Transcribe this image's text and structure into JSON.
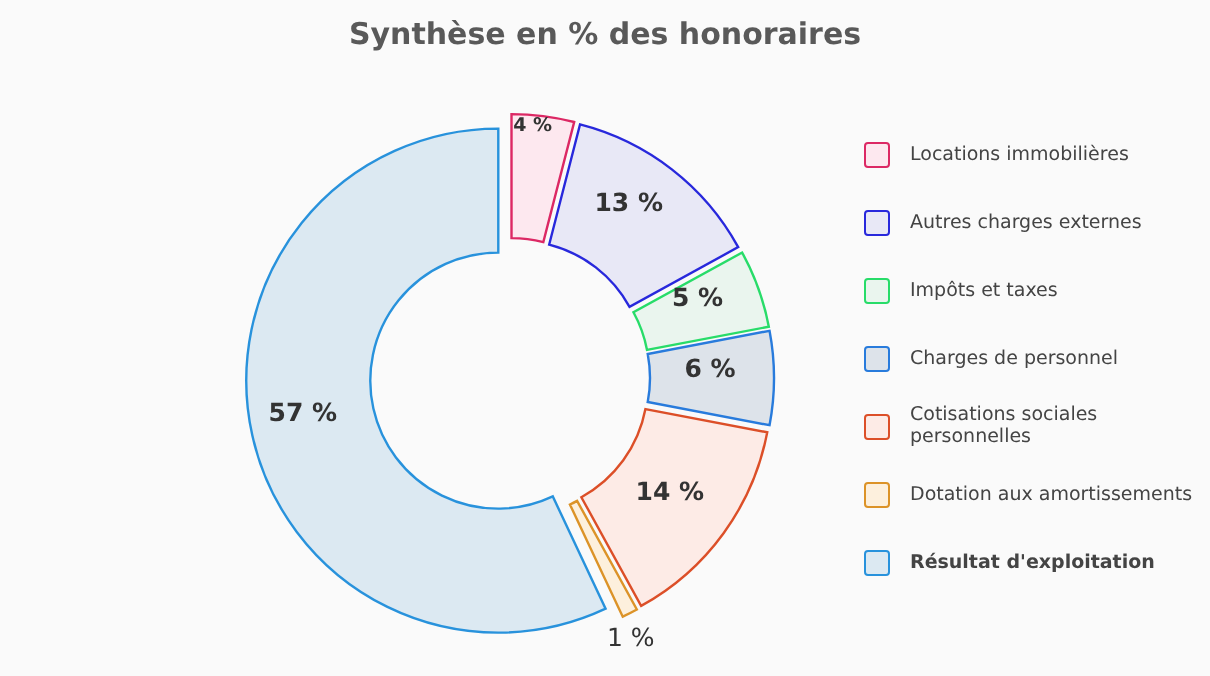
{
  "chart_data": {
    "type": "donut",
    "title": "Synthèse en % des honoraires",
    "categories": [
      "Locations immobilières",
      "Autres charges externes",
      "Impôts et taxes",
      "Charges de personnel",
      "Cotisations sociales personnelles",
      "Dotation aux amortissements",
      "Résultat d'exploitation"
    ],
    "values": [
      4,
      13,
      5,
      6,
      14,
      1,
      57
    ],
    "colors": [
      "#fde8ef",
      "#e8e8f6",
      "#eaf5ee",
      "#dde3ea",
      "#fdebe6",
      "#fdf0dd",
      "#dce9f2"
    ],
    "value_labels": [
      "4 %",
      "13 %",
      "5 %",
      "6 %",
      "14 %",
      "1 %",
      "57 %"
    ],
    "legend": "right"
  }
}
